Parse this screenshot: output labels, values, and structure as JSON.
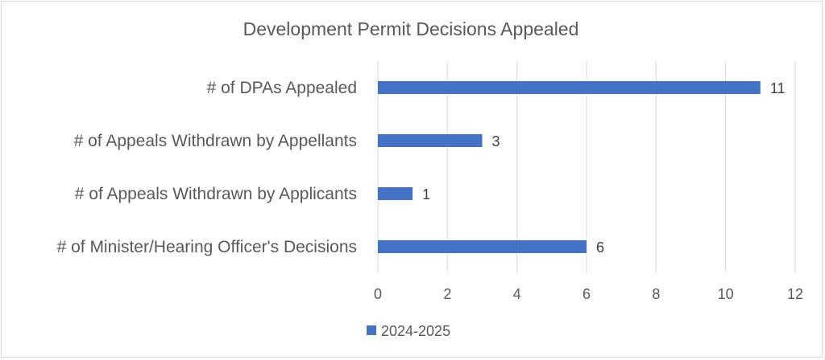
{
  "chart_data": {
    "type": "bar",
    "orientation": "horizontal",
    "title": "Development Permit Decisions Appealed",
    "categories": [
      "# of DPAs Appealed",
      "# of Appeals Withdrawn by Appellants",
      "# of Appeals Withdrawn by Applicants",
      "# of Minister/Hearing Officer's Decisions"
    ],
    "series": [
      {
        "name": "2024-2025",
        "values": [
          11,
          3,
          1,
          6
        ],
        "color": "#4472C4"
      }
    ],
    "xlim": [
      0,
      12
    ],
    "xticks": [
      0,
      2,
      4,
      6,
      8,
      10,
      12
    ],
    "grid": true,
    "legend_position": "bottom",
    "data_labels": true
  }
}
